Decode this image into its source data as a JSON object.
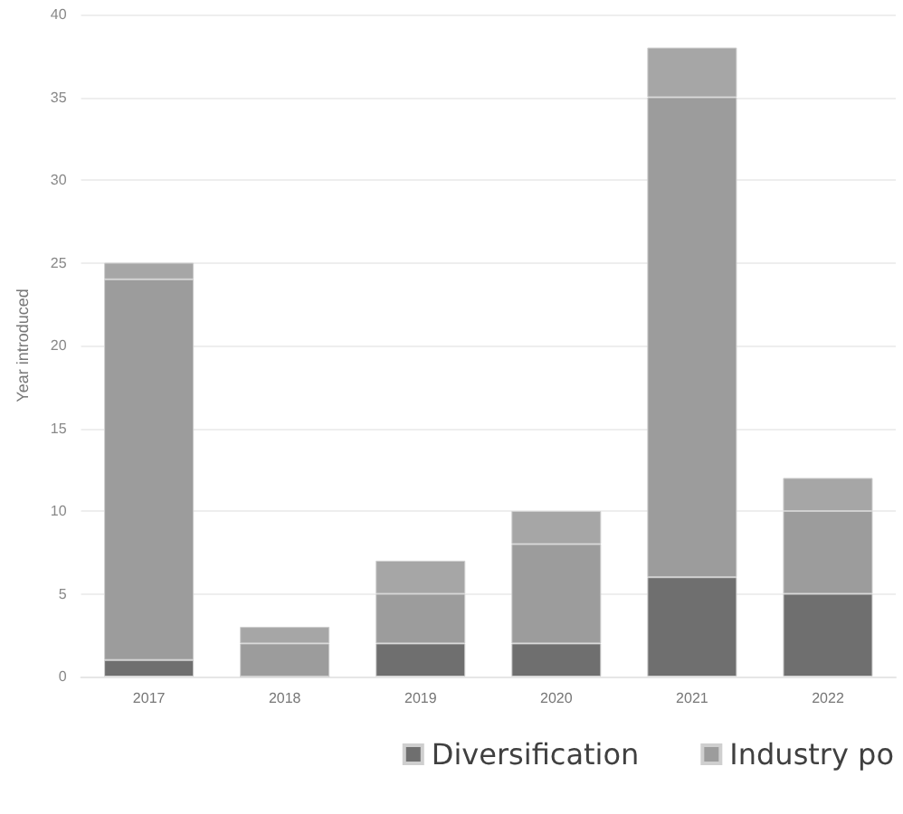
{
  "chart_data": {
    "type": "bar",
    "stacked": true,
    "ylabel": "Year introduced",
    "categories": [
      "2017",
      "2018",
      "2019",
      "2020",
      "2021",
      "2022"
    ],
    "series": [
      {
        "name": "Diversification",
        "color": "#6f6f6f",
        "values": [
          1,
          0,
          2,
          2,
          6,
          5
        ]
      },
      {
        "name": "Industry po",
        "color": "#9c9c9c",
        "values": [
          23,
          2,
          3,
          6,
          29,
          5
        ]
      },
      {
        "color": "#a6a6a6",
        "values": [
          1,
          1,
          2,
          2,
          3,
          2
        ]
      }
    ],
    "ylim": [
      0,
      40
    ],
    "yticks": [
      0,
      5,
      10,
      15,
      20,
      25,
      30,
      35,
      40
    ],
    "grid": "y",
    "legend": "bottom"
  }
}
